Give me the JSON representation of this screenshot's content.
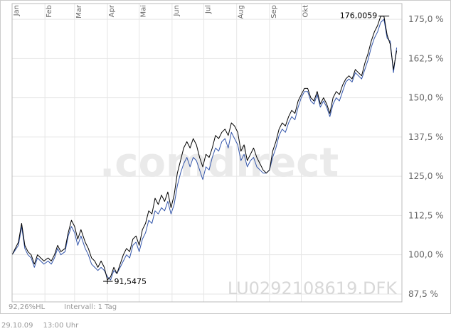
{
  "chart_data": {
    "type": "line",
    "months": [
      "Jan",
      "Feb",
      "Mar",
      "Apr",
      "Mai",
      "Jun",
      "Jul",
      "Aug",
      "Sep",
      "Okt"
    ],
    "y_ticks": [
      "175,0 %",
      "162,5 %",
      "150,0 %",
      "137,5 %",
      "125,0 %",
      "112,5 %",
      "100,0 %",
      "87,5 %"
    ],
    "y_tick_values": [
      175,
      162.5,
      150,
      137.5,
      125,
      112.5,
      100,
      87.5
    ],
    "ylim": [
      85,
      180
    ],
    "grid": true,
    "max_label": "176,0059",
    "min_label": "91,5475",
    "isin": "LU0292108619.DFK",
    "watermark": ".comdirect",
    "footer_left": "92,26%HL",
    "footer_interval": "Intervall: 1 Tag",
    "date": "29.10.09",
    "time": "13:00 Uhr",
    "series": [
      {
        "color": "#000000",
        "points": [
          [
            0,
            100
          ],
          [
            6,
            104
          ],
          [
            9,
            110
          ],
          [
            12,
            103
          ],
          [
            15,
            101
          ],
          [
            18,
            100
          ],
          [
            21,
            97
          ],
          [
            24,
            100
          ],
          [
            27,
            99
          ],
          [
            30,
            98
          ],
          [
            34,
            99
          ],
          [
            37,
            98
          ],
          [
            40,
            100
          ],
          [
            43,
            103
          ],
          [
            46,
            101
          ],
          [
            50,
            102
          ],
          [
            53,
            107
          ],
          [
            56,
            111
          ],
          [
            59,
            109
          ],
          [
            62,
            105
          ],
          [
            65,
            108
          ],
          [
            69,
            104
          ],
          [
            72,
            102
          ],
          [
            75,
            99
          ],
          [
            78,
            98
          ],
          [
            81,
            96
          ],
          [
            84,
            98
          ],
          [
            87,
            96
          ],
          [
            90,
            92
          ],
          [
            93,
            93
          ],
          [
            96,
            96
          ],
          [
            99,
            94
          ],
          [
            102,
            97
          ],
          [
            105,
            100
          ],
          [
            108,
            102
          ],
          [
            111,
            101
          ],
          [
            114,
            105
          ],
          [
            117,
            106
          ],
          [
            120,
            103
          ],
          [
            123,
            108
          ],
          [
            126,
            110
          ],
          [
            129,
            114
          ],
          [
            132,
            113
          ],
          [
            135,
            118
          ],
          [
            138,
            116
          ],
          [
            141,
            119
          ],
          [
            144,
            117
          ],
          [
            147,
            120
          ],
          [
            150,
            115
          ],
          [
            153,
            119
          ],
          [
            156,
            126
          ],
          [
            159,
            130
          ],
          [
            162,
            134
          ],
          [
            165,
            136
          ],
          [
            168,
            134
          ],
          [
            171,
            137
          ],
          [
            174,
            135
          ],
          [
            177,
            131
          ],
          [
            180,
            128
          ],
          [
            183,
            132
          ],
          [
            186,
            131
          ],
          [
            189,
            134
          ],
          [
            192,
            138
          ],
          [
            195,
            137
          ],
          [
            198,
            139
          ],
          [
            201,
            140
          ],
          [
            204,
            138
          ],
          [
            207,
            142
          ],
          [
            210,
            141
          ],
          [
            213,
            139
          ],
          [
            216,
            133
          ],
          [
            219,
            135
          ],
          [
            222,
            130
          ],
          [
            225,
            132
          ],
          [
            228,
            134
          ],
          [
            231,
            131
          ],
          [
            234,
            129
          ],
          [
            237,
            127
          ],
          [
            240,
            126
          ],
          [
            243,
            127
          ],
          [
            246,
            133
          ],
          [
            249,
            136
          ],
          [
            252,
            140
          ],
          [
            255,
            142
          ],
          [
            258,
            141
          ],
          [
            261,
            144
          ],
          [
            264,
            146
          ],
          [
            267,
            145
          ],
          [
            270,
            149
          ],
          [
            273,
            151
          ],
          [
            276,
            153
          ],
          [
            279,
            153
          ],
          [
            282,
            150
          ],
          [
            285,
            149
          ],
          [
            288,
            152
          ],
          [
            291,
            148
          ],
          [
            294,
            150
          ],
          [
            297,
            148
          ],
          [
            300,
            145
          ],
          [
            303,
            150
          ],
          [
            306,
            152
          ],
          [
            309,
            151
          ],
          [
            312,
            154
          ],
          [
            315,
            156
          ],
          [
            318,
            157
          ],
          [
            321,
            156
          ],
          [
            324,
            159
          ],
          [
            327,
            158
          ],
          [
            330,
            157
          ],
          [
            333,
            161
          ],
          [
            336,
            164
          ],
          [
            339,
            168
          ],
          [
            342,
            171
          ],
          [
            345,
            173
          ],
          [
            348,
            176
          ],
          [
            351,
            176
          ],
          [
            354,
            170
          ],
          [
            357,
            167
          ],
          [
            360,
            159
          ],
          [
            363,
            165
          ]
        ]
      },
      {
        "color": "#3355aa",
        "points": [
          [
            0,
            100
          ],
          [
            6,
            103
          ],
          [
            9,
            109
          ],
          [
            12,
            102
          ],
          [
            15,
            100
          ],
          [
            18,
            99
          ],
          [
            21,
            96
          ],
          [
            24,
            99
          ],
          [
            27,
            98
          ],
          [
            30,
            97
          ],
          [
            34,
            98
          ],
          [
            37,
            97
          ],
          [
            40,
            99
          ],
          [
            43,
            102
          ],
          [
            46,
            100
          ],
          [
            50,
            101
          ],
          [
            53,
            106
          ],
          [
            56,
            109
          ],
          [
            59,
            107
          ],
          [
            62,
            103
          ],
          [
            65,
            106
          ],
          [
            69,
            102
          ],
          [
            72,
            100
          ],
          [
            75,
            97
          ],
          [
            78,
            96
          ],
          [
            81,
            95
          ],
          [
            84,
            96
          ],
          [
            87,
            95
          ],
          [
            90,
            93
          ],
          [
            93,
            92
          ],
          [
            96,
            95
          ],
          [
            99,
            94
          ],
          [
            102,
            96
          ],
          [
            105,
            98
          ],
          [
            108,
            100
          ],
          [
            111,
            99
          ],
          [
            114,
            103
          ],
          [
            117,
            104
          ],
          [
            120,
            101
          ],
          [
            123,
            105
          ],
          [
            126,
            107
          ],
          [
            129,
            111
          ],
          [
            132,
            110
          ],
          [
            135,
            114
          ],
          [
            138,
            113
          ],
          [
            141,
            115
          ],
          [
            144,
            114
          ],
          [
            147,
            117
          ],
          [
            150,
            113
          ],
          [
            153,
            116
          ],
          [
            156,
            122
          ],
          [
            159,
            126
          ],
          [
            162,
            129
          ],
          [
            165,
            131
          ],
          [
            168,
            128
          ],
          [
            171,
            131
          ],
          [
            174,
            130
          ],
          [
            177,
            127
          ],
          [
            180,
            124
          ],
          [
            183,
            128
          ],
          [
            186,
            127
          ],
          [
            189,
            131
          ],
          [
            192,
            134
          ],
          [
            195,
            133
          ],
          [
            198,
            136
          ],
          [
            201,
            137
          ],
          [
            204,
            134
          ],
          [
            207,
            139
          ],
          [
            210,
            137
          ],
          [
            213,
            135
          ],
          [
            216,
            130
          ],
          [
            219,
            132
          ],
          [
            222,
            128
          ],
          [
            225,
            130
          ],
          [
            228,
            131
          ],
          [
            231,
            128
          ],
          [
            234,
            127
          ],
          [
            237,
            126
          ],
          [
            240,
            126
          ],
          [
            243,
            127
          ],
          [
            246,
            131
          ],
          [
            249,
            134
          ],
          [
            252,
            138
          ],
          [
            255,
            140
          ],
          [
            258,
            139
          ],
          [
            261,
            142
          ],
          [
            264,
            144
          ],
          [
            267,
            143
          ],
          [
            270,
            147
          ],
          [
            273,
            150
          ],
          [
            276,
            152
          ],
          [
            279,
            152
          ],
          [
            282,
            149
          ],
          [
            285,
            148
          ],
          [
            288,
            151
          ],
          [
            291,
            147
          ],
          [
            294,
            149
          ],
          [
            297,
            147
          ],
          [
            300,
            144
          ],
          [
            303,
            148
          ],
          [
            306,
            150
          ],
          [
            309,
            149
          ],
          [
            312,
            152
          ],
          [
            315,
            155
          ],
          [
            318,
            156
          ],
          [
            321,
            155
          ],
          [
            324,
            158
          ],
          [
            327,
            157
          ],
          [
            330,
            156
          ],
          [
            333,
            159
          ],
          [
            336,
            162
          ],
          [
            339,
            166
          ],
          [
            342,
            169
          ],
          [
            345,
            171
          ],
          [
            348,
            174
          ],
          [
            351,
            175
          ],
          [
            354,
            169
          ],
          [
            357,
            168
          ],
          [
            360,
            158
          ],
          [
            363,
            166
          ]
        ]
      }
    ]
  }
}
